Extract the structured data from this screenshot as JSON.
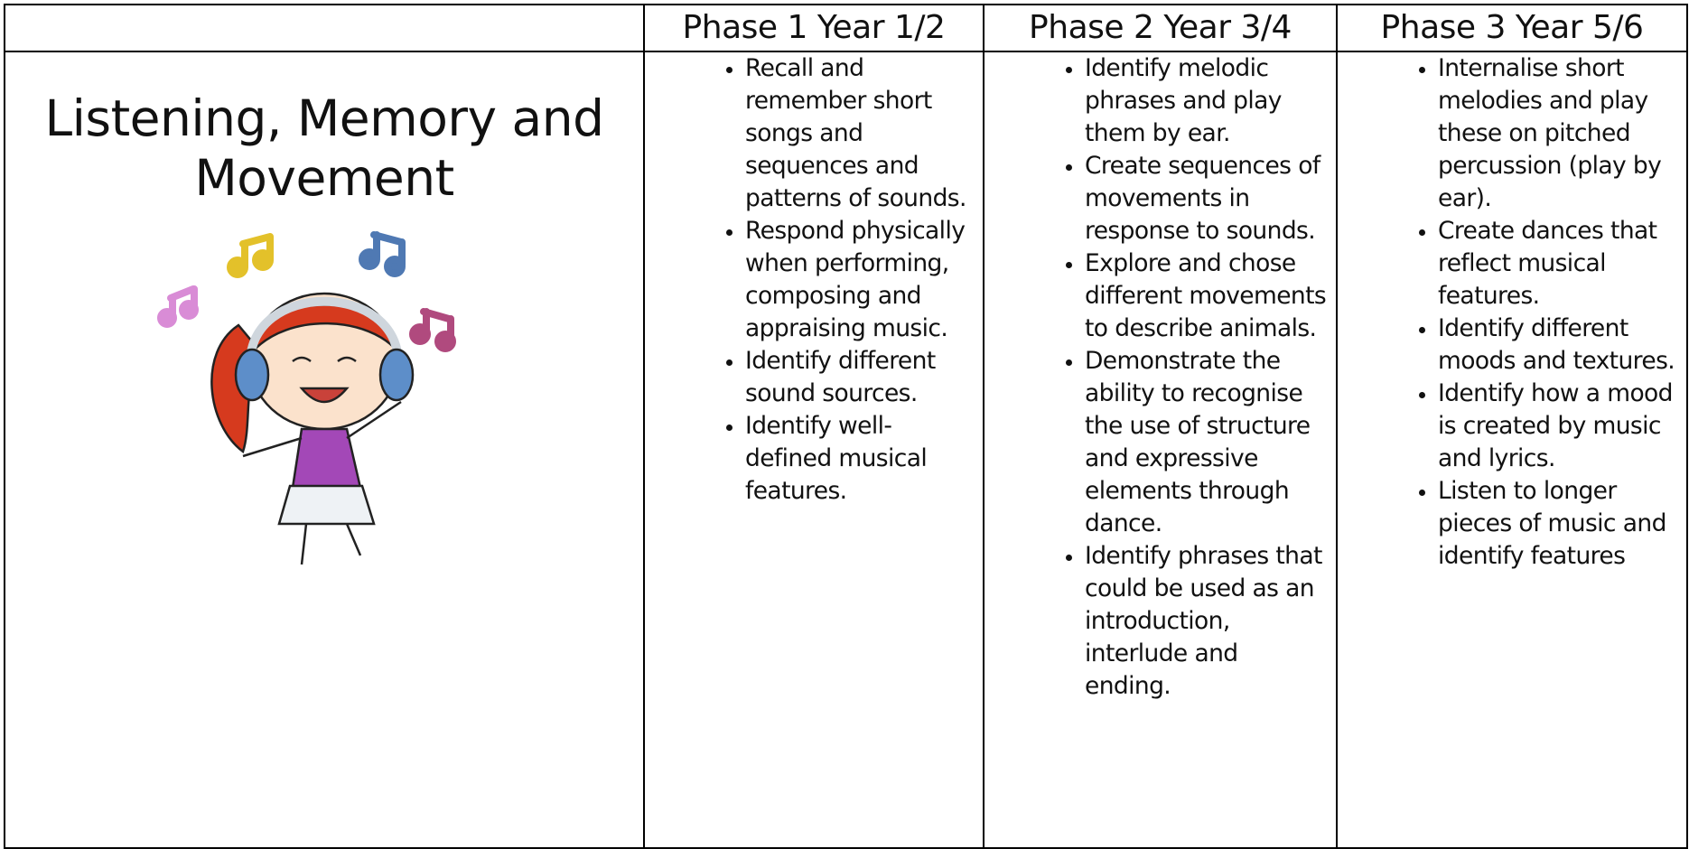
{
  "table": {
    "headers": [
      "Phase 1 Year 1/2",
      "Phase 2 Year 3/4",
      "Phase 3 Year 5/6"
    ],
    "topic": "Listening, Memory and Movement",
    "phases": [
      [
        "Recall and remember short songs and sequences and patterns of sounds.",
        "Respond physically when performing, composing and appraising music.",
        "Identify different sound sources.",
        "Identify well-defined musical features."
      ],
      [
        "Identify melodic phrases and play them by ear.",
        "Create sequences of movements in response to sounds.",
        "Explore and chose different movements to describe animals.",
        "Demonstrate the ability to recognise the use of structure and expressive elements through dance.",
        "Identify phrases that could be used as an introduction, interlude and ending."
      ],
      [
        "Internalise short melodies and play these on pitched percussion (play by ear).",
        "Create dances that reflect musical features.",
        "Identify different moods and textures.",
        "Identify how a mood is created by music and lyrics.",
        "Listen to longer pieces of music and identify features"
      ]
    ]
  }
}
